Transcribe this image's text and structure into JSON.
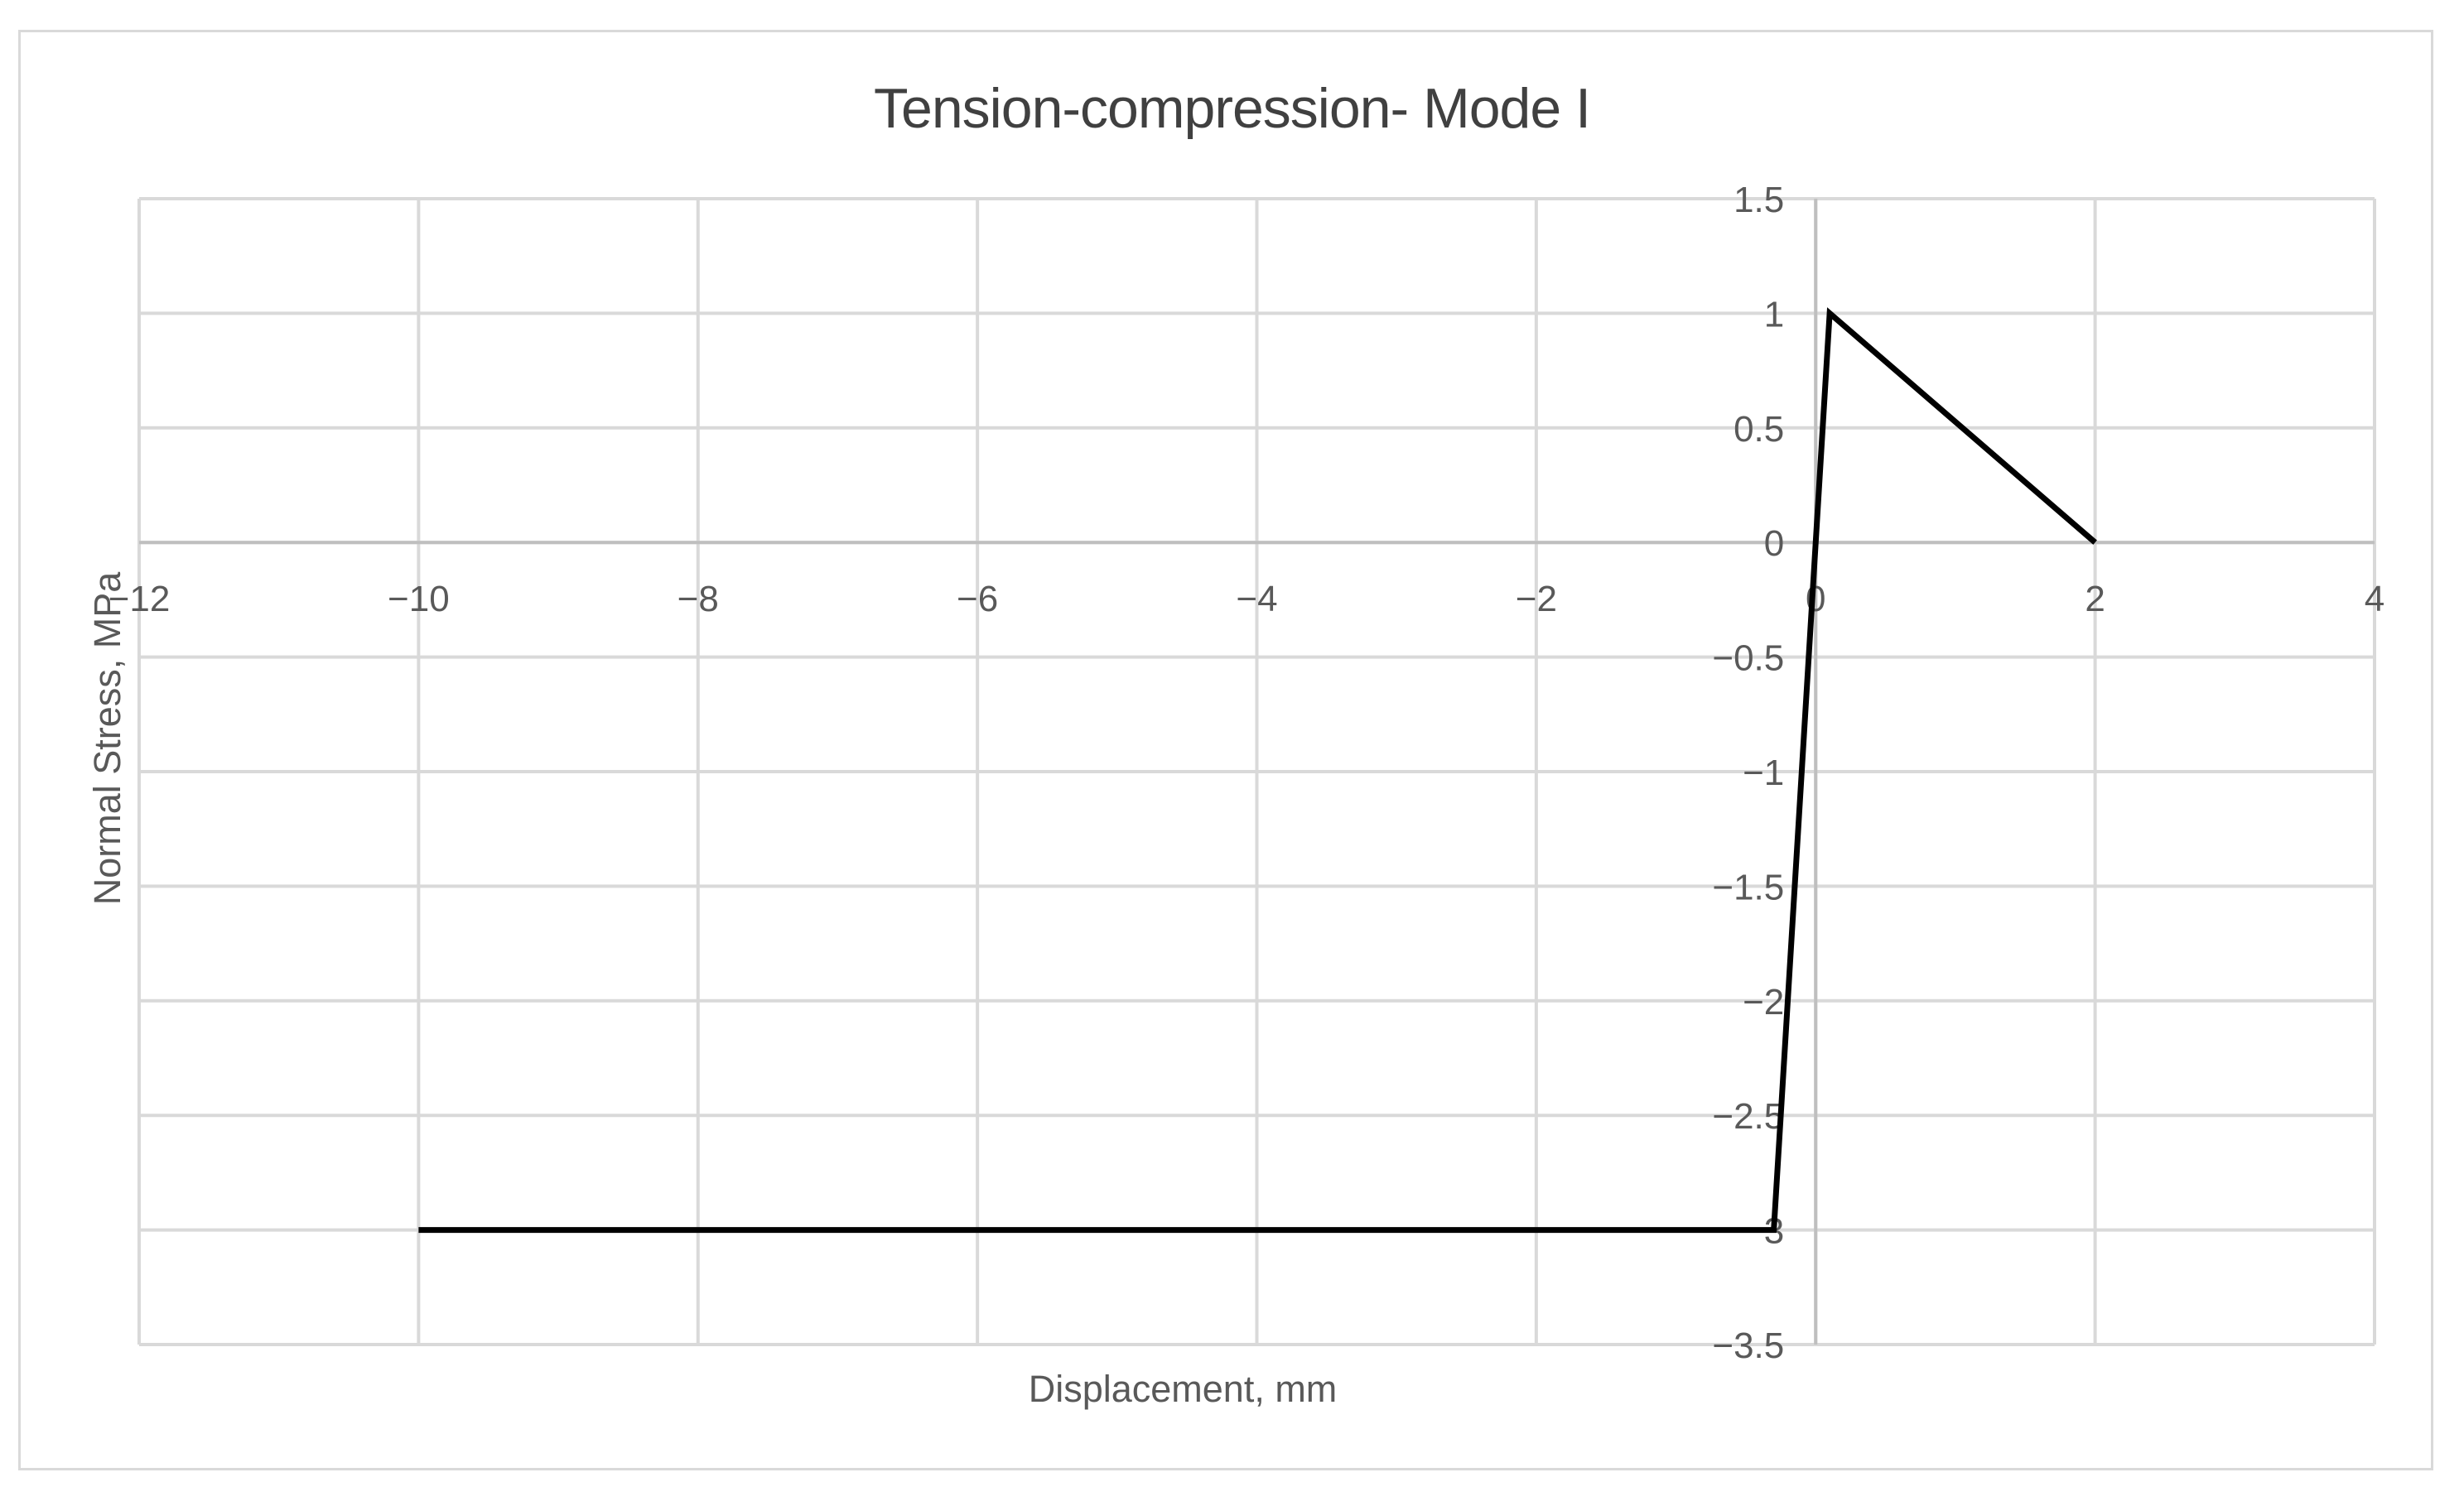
{
  "chart": {
    "title": "Tension-compression- Mode I",
    "x_axis": {
      "title": "Displacement, mm",
      "tick_labels": [
        "−12",
        "−10",
        "−8",
        "−6",
        "−4",
        "−2",
        "0",
        "2",
        "4"
      ]
    },
    "y_axis": {
      "title": "Normal Stress, MPa",
      "tick_labels": [
        "1.5",
        "1",
        "0.5",
        "0",
        "−0.5",
        "−1",
        "−1.5",
        "−2",
        "−2.5",
        "−3",
        "−3.5"
      ]
    },
    "colors": {
      "series": "#000000",
      "gridline": "#D9D9D9",
      "axis_line": "#BFBFBF",
      "tick_label": "#595959",
      "axis_title": "#595959",
      "title": "#404040",
      "border": "#D9D9D9",
      "background": "#FFFFFF"
    }
  },
  "chart_data": {
    "type": "line",
    "title": "Tension-compression- Mode I",
    "xlabel": "Displacement, mm",
    "ylabel": "Normal Stress, MPa",
    "xlim": [
      -12,
      4
    ],
    "ylim": [
      -3.5,
      1.5
    ],
    "x_ticks": [
      -12,
      -10,
      -8,
      -6,
      -4,
      -2,
      0,
      2,
      4
    ],
    "y_ticks": [
      1.5,
      1,
      0.5,
      0,
      -0.5,
      -1,
      -1.5,
      -2,
      -2.5,
      -3,
      -3.5
    ],
    "grid": true,
    "legend": false,
    "axes_cross_at": [
      0,
      0
    ],
    "series": [
      {
        "color": "#000000",
        "points": [
          [
            -10,
            -3
          ],
          [
            -0.3,
            -3
          ],
          [
            0.1,
            1
          ],
          [
            2,
            0
          ]
        ]
      }
    ]
  }
}
